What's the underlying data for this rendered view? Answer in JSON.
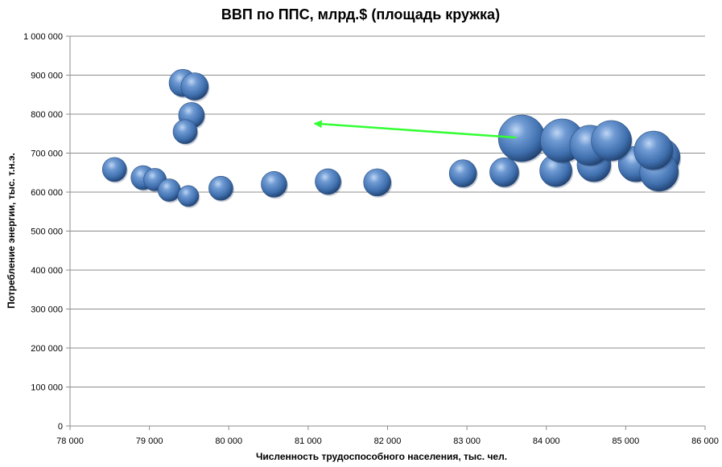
{
  "chart_data": {
    "type": "bubble",
    "title": "ВВП по ППС, млрд.$ (площадь кружка)",
    "xlabel": "Численность трудоспособного населения, тыс. чел.",
    "ylabel": "Потребление энергии, тыс. т.н.э.",
    "xlim": [
      78000,
      86000
    ],
    "ylim": [
      0,
      1000000
    ],
    "x_ticks": [
      "78 000",
      "79 000",
      "80 000",
      "81 000",
      "82 000",
      "83 000",
      "84 000",
      "85 000",
      "86 000"
    ],
    "y_ticks": [
      "0",
      "100 000",
      "200 000",
      "300 000",
      "400 000",
      "500 000",
      "600 000",
      "700 000",
      "800 000",
      "900 000",
      "1 000 000"
    ],
    "grid": "horizontal",
    "bubble_color": "#4a7ebb",
    "arrow_color": "#33ff33",
    "points": [
      {
        "x": 79420,
        "y": 880000,
        "size": 17
      },
      {
        "x": 79570,
        "y": 871000,
        "size": 17
      },
      {
        "x": 79530,
        "y": 797000,
        "size": 16
      },
      {
        "x": 79450,
        "y": 755000,
        "size": 15
      },
      {
        "x": 78560,
        "y": 658000,
        "size": 15
      },
      {
        "x": 78920,
        "y": 637000,
        "size": 15
      },
      {
        "x": 79070,
        "y": 632000,
        "size": 14
      },
      {
        "x": 79250,
        "y": 605000,
        "size": 14
      },
      {
        "x": 79490,
        "y": 590000,
        "size": 13
      },
      {
        "x": 79900,
        "y": 610000,
        "size": 15
      },
      {
        "x": 80570,
        "y": 620000,
        "size": 16
      },
      {
        "x": 81250,
        "y": 627000,
        "size": 16
      },
      {
        "x": 81870,
        "y": 625000,
        "size": 17
      },
      {
        "x": 82950,
        "y": 648000,
        "size": 17
      },
      {
        "x": 83470,
        "y": 651000,
        "size": 18
      },
      {
        "x": 84120,
        "y": 655000,
        "size": 20
      },
      {
        "x": 84600,
        "y": 670000,
        "size": 21
      },
      {
        "x": 85130,
        "y": 672000,
        "size": 22
      },
      {
        "x": 85450,
        "y": 690000,
        "size": 23
      },
      {
        "x": 85420,
        "y": 652000,
        "size": 24
      },
      {
        "x": 83690,
        "y": 738000,
        "size": 29
      },
      {
        "x": 84200,
        "y": 732000,
        "size": 27
      },
      {
        "x": 84550,
        "y": 720000,
        "size": 25
      },
      {
        "x": 84820,
        "y": 732000,
        "size": 25
      },
      {
        "x": 85350,
        "y": 707000,
        "size": 24
      }
    ],
    "arrow": {
      "from": {
        "x": 83620,
        "y": 740000
      },
      "to": {
        "x": 81080,
        "y": 776000
      }
    }
  }
}
